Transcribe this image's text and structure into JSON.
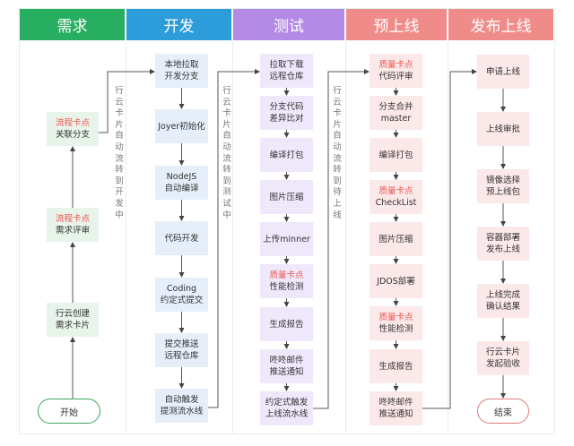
{
  "colors": {
    "req": "#27ae60",
    "dev": "#2d9cdb",
    "test": "#b38ae6",
    "pre": "#ef8c8a",
    "rel": "#ef8c8a",
    "red": "#ef5350"
  },
  "columns": [
    {
      "id": "req",
      "title": "需求",
      "fill": "#e8f3ea",
      "boxes": [
        {
          "tag": "流程卡点",
          "text": "关联分支"
        },
        {
          "tag": "流程卡点",
          "text": "需求评审"
        },
        {
          "text": "行云创建\n需求卡片"
        }
      ],
      "terminal": "开始",
      "terminal_color": "#3aa65c"
    },
    {
      "id": "dev",
      "title": "开发",
      "fill": "#e6eef9",
      "boxes": [
        {
          "text": "本地拉取\n开发分支"
        },
        {
          "text": "Joyer初始化"
        },
        {
          "text": "NodeJS\n自动编译"
        },
        {
          "text": "代码开发"
        },
        {
          "text": "Coding\n约定式提交"
        },
        {
          "text": "提交推送\n远程仓库"
        },
        {
          "text": "自动触发\n提测流水线"
        }
      ]
    },
    {
      "id": "test",
      "title": "测试",
      "fill": "#efe8fb",
      "boxes": [
        {
          "text": "拉取下载\n远程仓库"
        },
        {
          "text": "分支代码\n差异比对"
        },
        {
          "text": "编译打包"
        },
        {
          "text": "图片压缩"
        },
        {
          "text": "上传minner"
        },
        {
          "tag": "质量卡点",
          "text": "性能检测"
        },
        {
          "text": "生成报告"
        },
        {
          "text": "咚咚邮件\n推送通知"
        },
        {
          "text": "约定式触发\n上线流水线"
        }
      ]
    },
    {
      "id": "pre",
      "title": "预上线",
      "fill": "#fbe8e8",
      "boxes": [
        {
          "tag": "质量卡点",
          "text": "代码评审"
        },
        {
          "text": "分支合并\nmaster"
        },
        {
          "text": "编译打包"
        },
        {
          "tag": "质量卡点",
          "text": "CheckList"
        },
        {
          "text": "图片压缩"
        },
        {
          "text": "JDOS部署"
        },
        {
          "tag": "质量卡点",
          "text": "性能检测"
        },
        {
          "text": "生成报告"
        },
        {
          "text": "咚咚邮件\n推送通知"
        }
      ]
    },
    {
      "id": "rel",
      "title": "发布上线",
      "fill": "#fbe8e8",
      "boxes": [
        {
          "text": "申请上线"
        },
        {
          "text": "上线审批"
        },
        {
          "text": "镜像选择\n预上线包"
        },
        {
          "text": "容器部署\n发布上线"
        },
        {
          "text": "上线完成\n确认结果"
        },
        {
          "text": "行云卡片\n发起验收"
        }
      ],
      "terminal": "结束",
      "terminal_color": "#e07a78"
    }
  ],
  "transitions": [
    "行云卡片自动流转到开发中",
    "行云卡片自动流转到测试中",
    "行云卡片自动流转到待上线"
  ]
}
